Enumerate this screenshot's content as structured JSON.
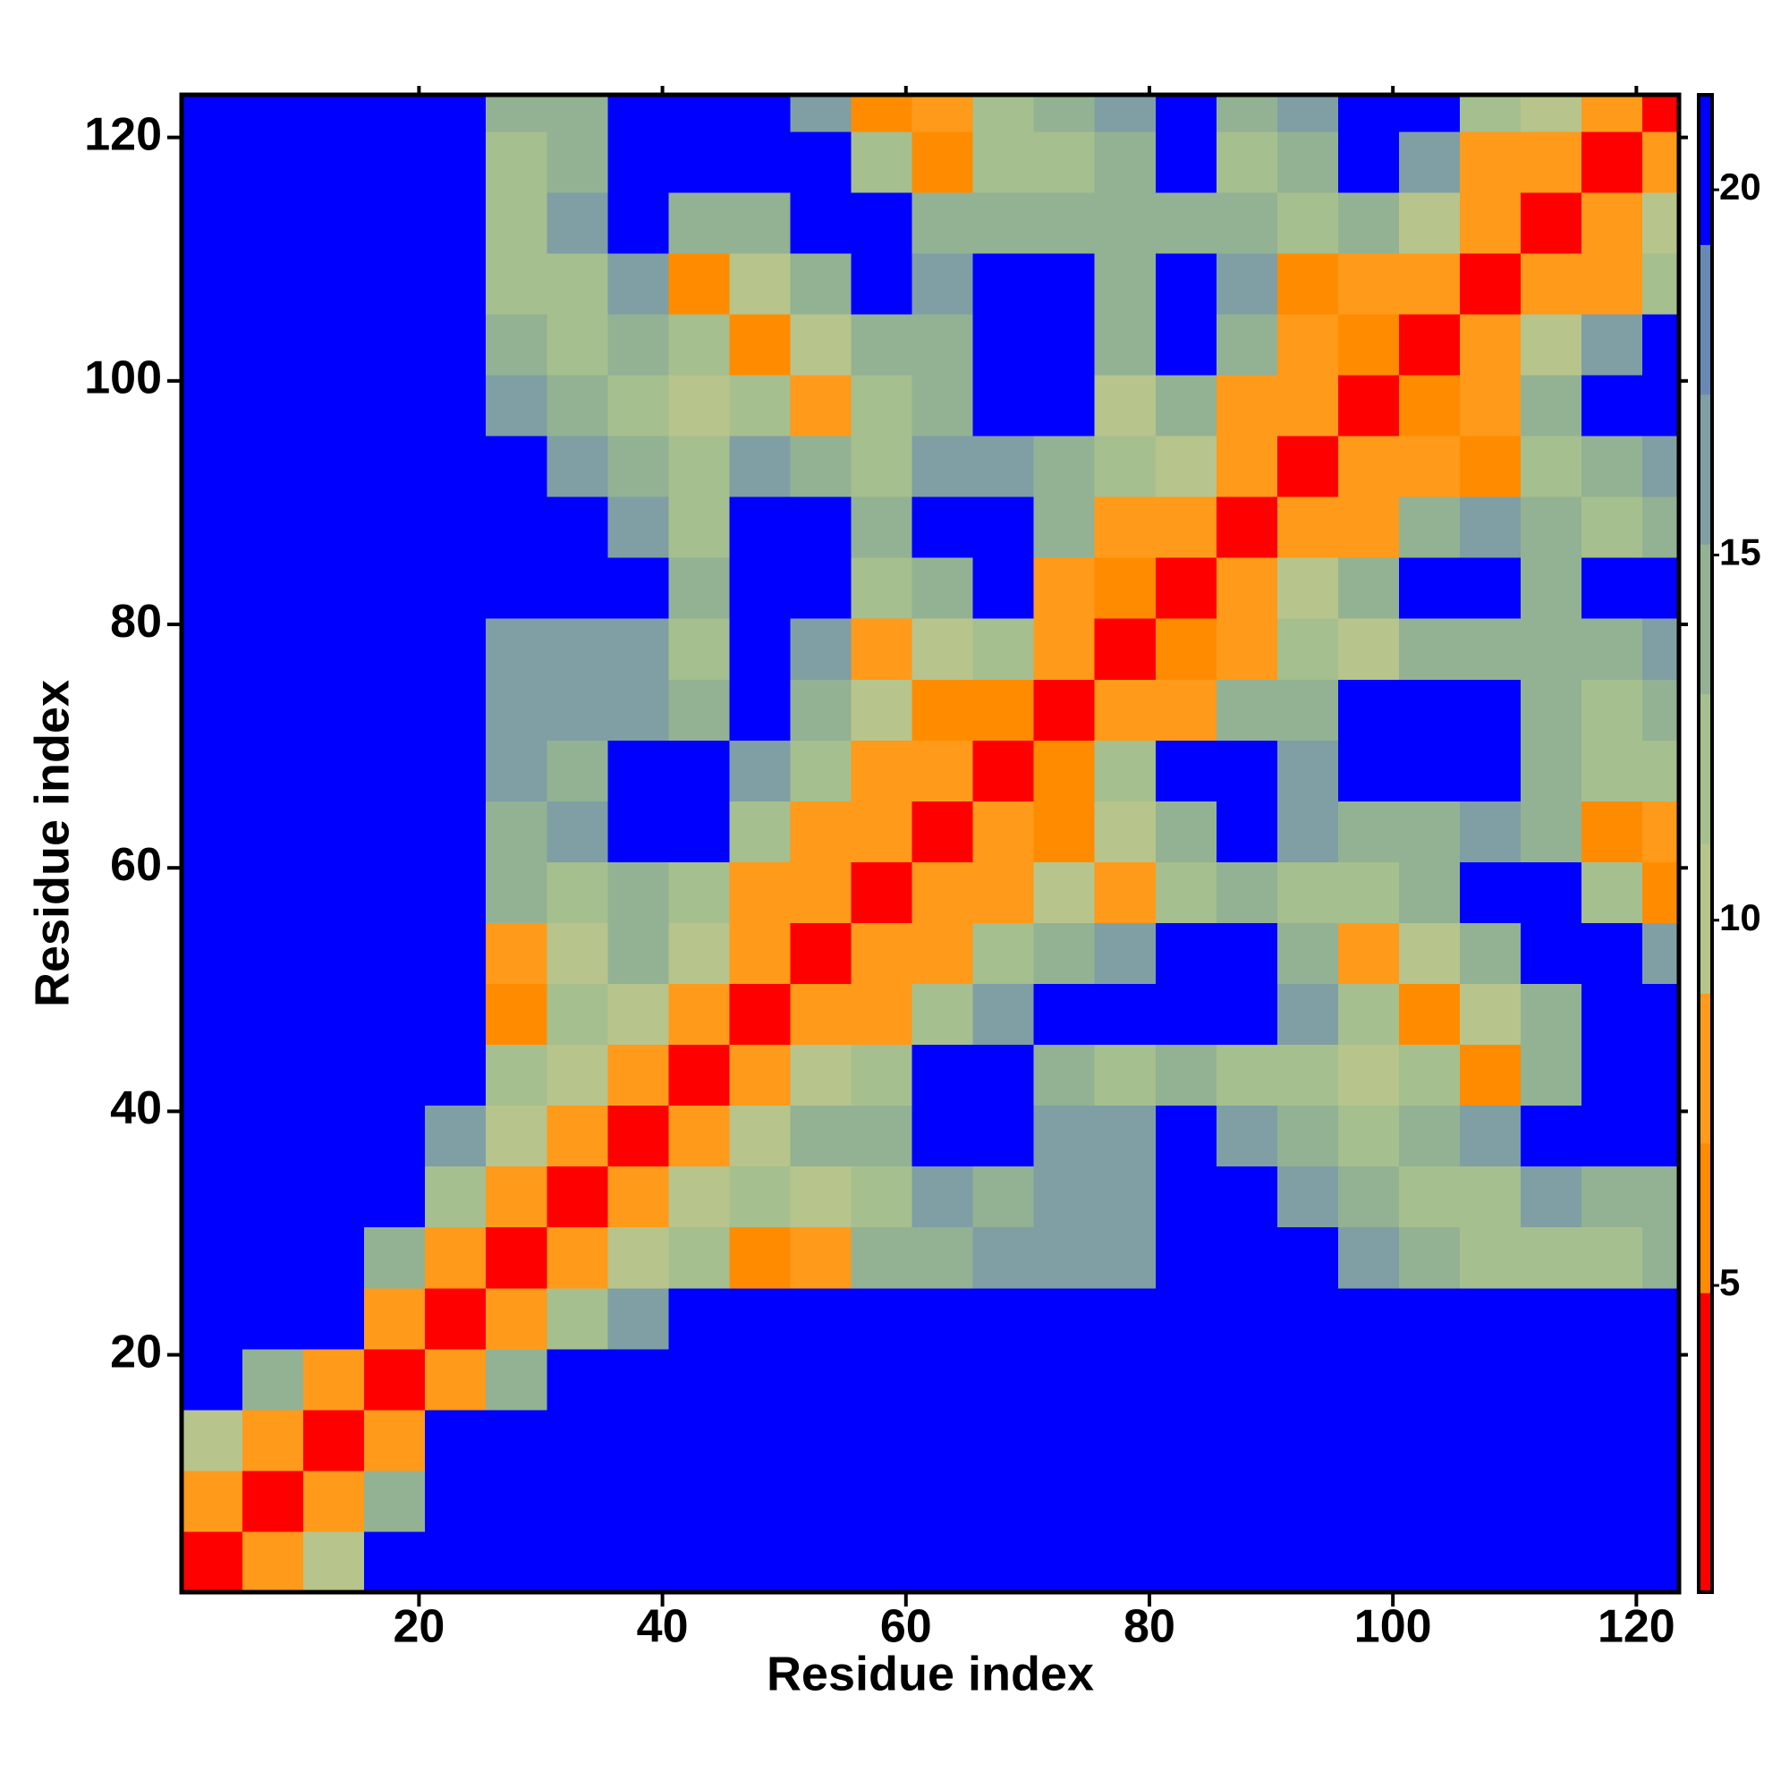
{
  "chart_data": {
    "type": "heatmap",
    "xlabel": "Residue index",
    "ylabel": "Residue index",
    "xlim": [
      0.5,
      123.5
    ],
    "ylim": [
      0.5,
      123.5
    ],
    "xticks": [
      20,
      40,
      60,
      80,
      100,
      120
    ],
    "yticks": [
      20,
      40,
      60,
      80,
      100,
      120
    ],
    "xbins": [
      0.5,
      5.5,
      10.5,
      15.5,
      20.5,
      25.5,
      30.5,
      35.5,
      40.5,
      45.5,
      50.5,
      55.5,
      60.5,
      65.5,
      70.5,
      75.5,
      80.5,
      85.5,
      90.5,
      95.5,
      100.5,
      105.5,
      110.5,
      115.5,
      120.5,
      123.5
    ],
    "ybins": [
      0.5,
      5.5,
      10.5,
      15.5,
      20.5,
      25.5,
      30.5,
      35.5,
      40.5,
      45.5,
      50.5,
      55.5,
      60.5,
      65.5,
      70.5,
      75.5,
      80.5,
      85.5,
      90.5,
      95.5,
      100.5,
      105.5,
      110.5,
      115.5,
      120.5,
      123.5
    ],
    "z": [
      [
        2,
        7,
        11,
        21,
        21,
        21,
        21,
        21,
        21,
        21,
        21,
        21,
        21,
        21,
        21,
        21,
        21,
        21,
        21,
        21,
        21,
        21,
        21,
        21,
        21
      ],
      [
        7,
        2,
        7,
        15,
        21,
        21,
        21,
        21,
        21,
        21,
        21,
        21,
        21,
        21,
        21,
        21,
        21,
        21,
        21,
        21,
        21,
        21,
        21,
        21,
        21
      ],
      [
        11,
        7,
        2,
        7,
        21,
        21,
        21,
        21,
        21,
        21,
        21,
        21,
        21,
        21,
        21,
        21,
        21,
        21,
        21,
        21,
        21,
        21,
        21,
        21,
        21
      ],
      [
        21,
        15,
        7,
        2,
        7,
        15,
        21,
        21,
        21,
        21,
        21,
        21,
        21,
        21,
        21,
        21,
        21,
        21,
        21,
        21,
        21,
        21,
        21,
        21,
        21
      ],
      [
        21,
        21,
        21,
        7,
        2,
        7,
        12,
        16,
        21,
        21,
        21,
        21,
        21,
        21,
        21,
        21,
        21,
        21,
        21,
        21,
        21,
        21,
        21,
        21,
        21
      ],
      [
        21,
        21,
        21,
        15,
        7,
        2,
        7,
        11,
        13,
        6,
        9,
        14,
        15,
        16,
        16,
        17,
        21,
        21,
        21,
        16,
        14,
        13,
        13,
        13,
        14
      ],
      [
        21,
        21,
        21,
        21,
        12,
        7,
        2,
        7,
        10,
        12,
        10,
        13,
        16,
        15,
        16,
        17,
        21,
        21,
        17,
        15,
        13,
        12,
        16,
        14,
        15
      ],
      [
        21,
        21,
        21,
        21,
        16,
        11,
        7,
        2,
        7,
        11,
        14,
        15,
        21,
        21,
        16,
        16,
        21,
        17,
        15,
        13,
        14,
        16,
        21,
        21,
        21
      ],
      [
        21,
        21,
        21,
        21,
        21,
        13,
        10,
        7,
        2,
        7,
        11,
        13,
        21,
        21,
        15,
        13,
        14,
        13,
        12,
        11,
        13,
        6,
        14,
        21,
        21
      ],
      [
        21,
        21,
        21,
        21,
        21,
        6,
        12,
        11,
        7,
        2,
        7,
        9,
        13,
        16,
        21,
        21,
        21,
        21,
        16,
        12,
        6,
        11,
        14,
        21,
        21
      ],
      [
        21,
        21,
        21,
        21,
        21,
        9,
        10,
        14,
        11,
        7,
        2,
        7,
        9,
        12,
        15,
        16,
        21,
        21,
        15,
        7,
        11,
        14,
        21,
        21,
        16
      ],
      [
        21,
        21,
        21,
        21,
        21,
        14,
        13,
        15,
        13,
        9,
        7,
        2,
        7,
        9,
        11,
        7,
        12,
        15,
        13,
        12,
        14,
        21,
        21,
        13,
        6
      ],
      [
        21,
        21,
        21,
        21,
        21,
        15,
        16,
        21,
        21,
        13,
        9,
        7,
        2,
        7,
        6,
        11,
        14,
        21,
        16,
        14,
        14,
        16,
        15,
        6,
        9
      ],
      [
        21,
        21,
        21,
        21,
        21,
        16,
        15,
        21,
        21,
        16,
        12,
        9,
        7,
        2,
        6,
        12,
        21,
        21,
        16,
        21,
        21,
        21,
        15,
        12,
        13
      ],
      [
        21,
        21,
        21,
        21,
        21,
        16,
        16,
        16,
        15,
        21,
        15,
        11,
        6,
        6,
        2,
        7,
        8,
        14,
        15,
        21,
        21,
        21,
        15,
        13,
        15
      ],
      [
        21,
        21,
        21,
        21,
        21,
        17,
        17,
        16,
        13,
        21,
        16,
        7,
        11,
        12,
        7,
        2,
        6,
        7,
        12,
        10,
        14,
        15,
        14,
        15,
        16
      ],
      [
        21,
        21,
        21,
        21,
        21,
        21,
        21,
        21,
        14,
        21,
        21,
        12,
        14,
        21,
        8,
        6,
        2,
        7,
        11,
        15,
        21,
        21,
        15,
        21,
        21
      ],
      [
        21,
        21,
        21,
        21,
        21,
        21,
        21,
        17,
        13,
        21,
        21,
        15,
        21,
        21,
        14,
        7,
        7,
        2,
        7,
        9,
        14,
        16,
        14,
        13,
        14
      ],
      [
        21,
        21,
        21,
        21,
        21,
        21,
        17,
        15,
        12,
        16,
        15,
        13,
        16,
        16,
        15,
        12,
        11,
        7,
        2,
        7,
        8,
        6,
        12,
        15,
        16
      ],
      [
        21,
        21,
        21,
        21,
        21,
        16,
        15,
        13,
        11,
        12,
        7,
        12,
        14,
        21,
        21,
        10,
        15,
        9,
        7,
        2,
        6,
        7,
        14,
        21,
        21
      ],
      [
        21,
        21,
        21,
        21,
        21,
        14,
        13,
        14,
        13,
        6,
        11,
        14,
        14,
        21,
        21,
        14,
        21,
        14,
        8,
        6,
        2,
        7,
        11,
        16,
        21
      ],
      [
        21,
        21,
        21,
        21,
        21,
        13,
        12,
        16,
        6,
        11,
        14,
        21,
        16,
        21,
        21,
        15,
        21,
        16,
        6,
        7,
        7,
        2,
        7,
        9,
        13
      ],
      [
        21,
        21,
        21,
        21,
        21,
        13,
        16,
        21,
        14,
        14,
        21,
        21,
        15,
        15,
        15,
        14,
        15,
        14,
        12,
        14,
        11,
        7,
        2,
        7,
        10
      ],
      [
        21,
        21,
        21,
        21,
        21,
        13,
        14,
        21,
        21,
        21,
        21,
        13,
        6,
        12,
        13,
        15,
        21,
        13,
        15,
        21,
        16,
        9,
        7,
        2,
        7
      ],
      [
        21,
        21,
        21,
        21,
        21,
        14,
        15,
        21,
        21,
        21,
        16,
        6,
        9,
        13,
        15,
        16,
        21,
        14,
        16,
        21,
        21,
        13,
        10,
        7,
        2
      ]
    ],
    "colorbar": {
      "clim": [
        0.8,
        21.3
      ],
      "ticks": [
        5,
        10,
        15,
        20
      ],
      "colors": [
        "#ff0000",
        "#ff0000",
        "#ff8c00",
        "#ff9a1a",
        "#b7c48c",
        "#a6bf8e",
        "#93b293",
        "#7f9fa4",
        "#6a88b4",
        "#0000ff"
      ]
    }
  }
}
